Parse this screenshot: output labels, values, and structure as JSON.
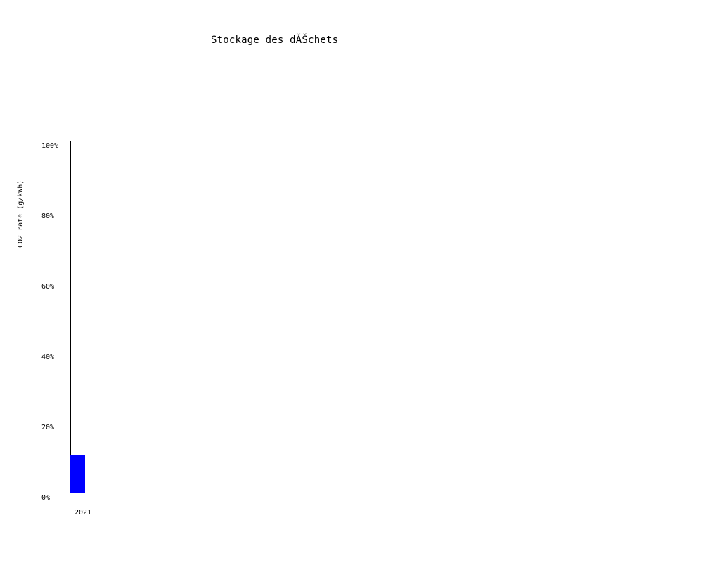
{
  "chart_data": {
    "type": "bar",
    "title": "Stockage des dĂŠchets",
    "xlabel": "",
    "ylabel": "CO2 rate (g/kWh)",
    "categories": [
      "2021"
    ],
    "values": [
      12
    ],
    "ylim": [
      0,
      100
    ],
    "y_ticks": [
      0,
      20,
      40,
      60,
      80,
      100
    ],
    "y_tick_suffix": "%",
    "grid": false,
    "legend": "none",
    "bar_color": "#0000ff",
    "axis_color": "#000000"
  }
}
